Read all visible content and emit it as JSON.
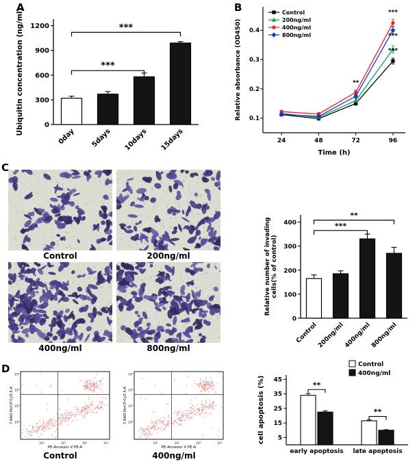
{
  "panel_labels": {
    "A": "A",
    "B": "B",
    "C": "C",
    "D": "D"
  },
  "chart_data": [
    {
      "id": "chartA",
      "type": "bar",
      "ylabel": [
        "Ubiquitin concentration (ng/ml)"
      ],
      "ylim": [
        0,
        1280
      ],
      "yticks": [
        0,
        300,
        600,
        900,
        1200
      ],
      "categories": [
        "0day",
        "5days",
        "10days",
        "15days"
      ],
      "values": [
        320,
        370,
        580,
        990
      ],
      "errors": [
        25,
        30,
        45,
        18
      ],
      "fills": [
        "#ffffff",
        "#141414",
        "#141414",
        "#141414"
      ],
      "significance": [
        {
          "from": 0,
          "to": 2,
          "y": 655,
          "text": "***"
        },
        {
          "from": 0,
          "to": 3,
          "y": 1120,
          "text": "***"
        }
      ]
    },
    {
      "id": "chartB",
      "type": "line",
      "xlabel": "Time (h)",
      "ylabel": "Relative absorbance (OD450)",
      "x": [
        24,
        48,
        72,
        96
      ],
      "xlim": [
        12,
        104
      ],
      "ylim": [
        0.05,
        0.48
      ],
      "yticks": [
        0.1,
        0.2,
        0.3,
        0.4
      ],
      "legend_position": "top-left",
      "series": [
        {
          "name": "Control",
          "color": "#000000",
          "marker": "sq",
          "values": [
            0.112,
            0.098,
            0.15,
            0.295
          ],
          "errors": [
            0.005,
            0.004,
            0.006,
            0.01
          ]
        },
        {
          "name": "200ng/ml",
          "color": "#00a651",
          "marker": "tri",
          "values": [
            0.116,
            0.102,
            0.16,
            0.335
          ],
          "errors": [
            0.005,
            0.004,
            0.006,
            0.012
          ]
        },
        {
          "name": "400ng/ml",
          "color": "#ed1c24",
          "marker": "cir",
          "values": [
            0.122,
            0.114,
            0.188,
            0.425
          ],
          "errors": [
            0.005,
            0.005,
            0.008,
            0.012
          ]
        },
        {
          "name": "800ng/ml",
          "color": "#1736c8",
          "marker": "dia",
          "values": [
            0.113,
            0.106,
            0.175,
            0.4
          ],
          "errors": [
            0.005,
            0.004,
            0.007,
            0.012
          ]
        }
      ],
      "annotations": [
        {
          "x": 72,
          "y": 0.215,
          "text": "**"
        },
        {
          "x": 96,
          "y": 0.455,
          "text": "***"
        },
        {
          "x": 96,
          "y": 0.375,
          "text": "***"
        },
        {
          "x": 96,
          "y": 0.325,
          "text": "***"
        }
      ]
    },
    {
      "id": "chartC",
      "type": "bar",
      "ylabel": [
        "Relative number of invading",
        "cells(% of control)"
      ],
      "ylim": [
        0,
        430
      ],
      "yticks": [
        0,
        100,
        200,
        300,
        400
      ],
      "categories": [
        "Control",
        "200ng/ml",
        "400ng/ml",
        "800ng/ml"
      ],
      "values": [
        165,
        185,
        330,
        270
      ],
      "errors": [
        15,
        12,
        20,
        25
      ],
      "fills": [
        "#ffffff",
        "#141414",
        "#141414",
        "#141414"
      ],
      "significance": [
        {
          "from": 0,
          "to": 3,
          "y": 408,
          "text": "**"
        },
        {
          "from": 0,
          "to": 2,
          "y": 365,
          "text": "***"
        }
      ]
    },
    {
      "id": "chartD",
      "type": "grouped_bar",
      "ylabel": "cell apoptosis (%)",
      "ylim": [
        0,
        48
      ],
      "yticks": [
        5,
        15,
        25,
        35,
        45
      ],
      "categories": [
        "early apoptosis",
        "late apoptosis"
      ],
      "series": [
        {
          "name": "Control",
          "fill": "#ffffff",
          "values": [
            34,
            16.5
          ],
          "errors": [
            1.2,
            0.6
          ]
        },
        {
          "name": "400ng/ml",
          "fill": "#141414",
          "values": [
            22.5,
            10
          ],
          "errors": [
            0.9,
            0.4
          ]
        }
      ],
      "significance": [
        {
          "group": 0,
          "y": 38,
          "text": "**"
        },
        {
          "group": 1,
          "y": 19.5,
          "text": "**"
        }
      ]
    }
  ],
  "microscopy": {
    "background": "#d9ddd2",
    "pore_color": "#c5c9bd",
    "cell_colors": [
      "#453e86",
      "#574d97",
      "#3a3274",
      "#665c9f",
      "#2e2a5e"
    ],
    "images": [
      {
        "label": "Control",
        "density": 80,
        "seed": 11
      },
      {
        "label": "200ng/ml",
        "density": 100,
        "seed": 22
      },
      {
        "label": "400ng/ml",
        "density": 190,
        "seed": 33
      },
      {
        "label": "800ng/ml",
        "density": 165,
        "seed": 44
      }
    ]
  },
  "flow_cytometry": {
    "xlabel": "PE-Annexin V PE-A",
    "ylabel": "7-AAD PerCP-Cy5-5-A",
    "xticks": [
      "10²",
      "10³",
      "10⁴",
      "10⁵"
    ],
    "yticks": [
      "10²",
      "10³",
      "10⁴",
      "10⁵"
    ],
    "point_color": "#e4716f",
    "plots": [
      {
        "label": "Control",
        "seed": 7
      },
      {
        "label": "400ng/ml",
        "seed": 19
      }
    ]
  }
}
